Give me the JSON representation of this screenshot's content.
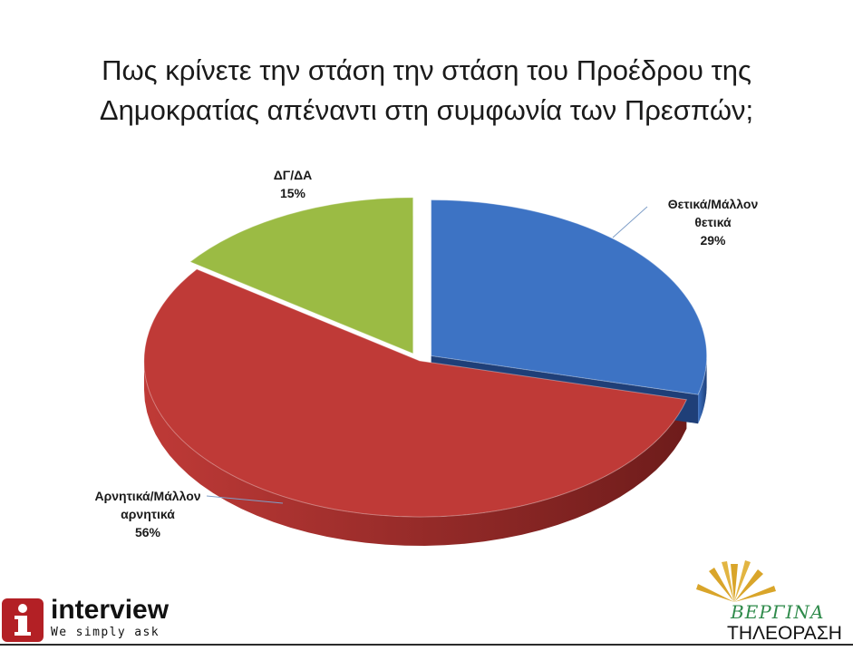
{
  "chart_data": {
    "type": "pie",
    "title_lines": [
      "Πως κρίνετε την στάση την στάση του Προέδρου της",
      "Δημοκρατίας απέναντι στη συμφωνία των Πρεσπών;"
    ],
    "slices": [
      {
        "label_lines": [
          "Θετικά/Μάλλον",
          "θετικά"
        ],
        "value": 29,
        "value_text": "29%",
        "color": "#3d73c4",
        "dark": "#1f3f78",
        "exploded": true
      },
      {
        "label_lines": [
          "Αρνητικά/Μάλλον",
          "αρνητικά"
        ],
        "value": 56,
        "value_text": "56%",
        "color": "#bf3a37",
        "dark": "#6e1c1b",
        "exploded": false
      },
      {
        "label_lines": [
          "ΔΓ/ΔΑ"
        ],
        "value": 15,
        "value_text": "15%",
        "color": "#9bbb44",
        "dark": "#5a7024",
        "exploded": true
      }
    ],
    "style": "3d-tilted"
  },
  "logos": {
    "left_name": "interview",
    "left_tagline": "We simply ask",
    "right_name": "ΒΕΡΓΙΝΑ",
    "right_sub": "ΤΗΛΕΟΡΑΣΗ"
  }
}
